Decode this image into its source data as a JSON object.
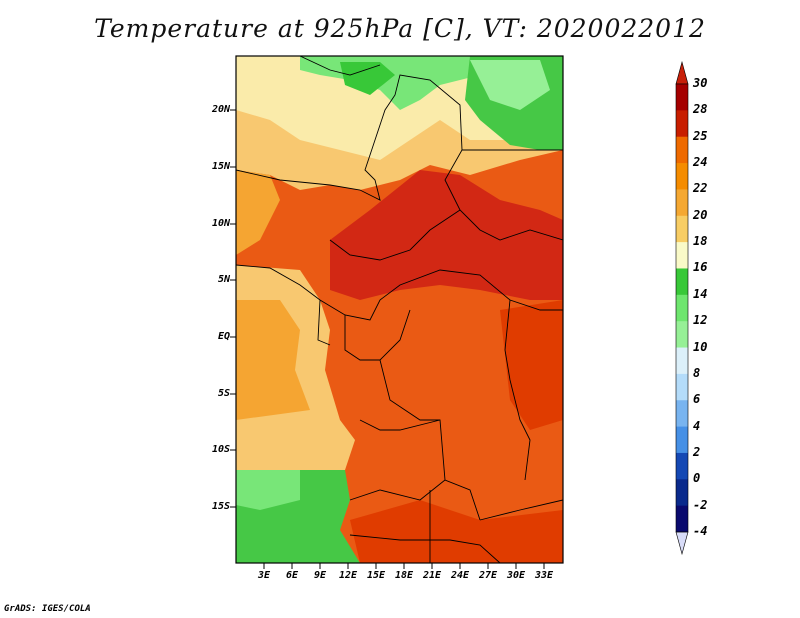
{
  "title": "Temperature at 925hPa [C], VT: 2020022012",
  "credit": "GrADS: IGES/COLA",
  "lat_labels": [
    "20N",
    "15N",
    "10N",
    "5N",
    "EQ",
    "5S",
    "10S",
    "15S"
  ],
  "lon_labels": [
    "3E",
    "6E",
    "9E",
    "12E",
    "15E",
    "18E",
    "21E",
    "24E",
    "27E",
    "30E",
    "33E"
  ],
  "colorbar": {
    "labels": [
      "30",
      "28",
      "25",
      "24",
      "22",
      "20",
      "18",
      "16",
      "14",
      "12",
      "10",
      "8",
      "6",
      "4",
      "2",
      "0",
      "-2",
      "-4"
    ],
    "colors": [
      "#a50000",
      "#c81e00",
      "#e03c00",
      "#ef6a00",
      "#f58c00",
      "#f5a832",
      "#f8cd64",
      "#fae496",
      "#fafac8",
      "#38c838",
      "#6ee66e",
      "#96f096",
      "#c8fac8",
      "#dcf0fa",
      "#b4dcfa",
      "#78b4f0",
      "#4690e6",
      "#2864dc",
      "#1448b4",
      "#0a2a8c",
      "#0a0a6e"
    ],
    "top_color": "#c8200a",
    "bottom_color": "#d8dcf8"
  },
  "colors": {
    "hot": "#d22814",
    "warm": "#ea5a14",
    "orange": "#f07814",
    "amber": "#f5a532",
    "light": "#f8c870",
    "pale": "#faebaa",
    "green": "#46c846",
    "lightgreen": "#78e678"
  }
}
